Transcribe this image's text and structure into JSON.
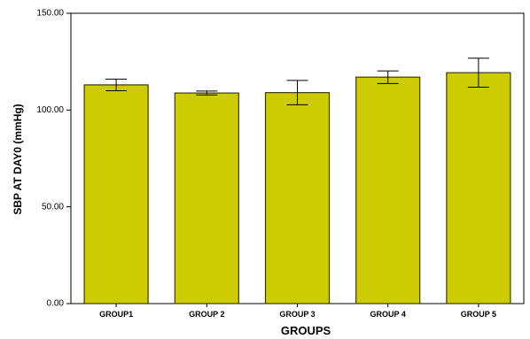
{
  "chart_data": {
    "type": "bar",
    "categories": [
      "GROUP1",
      "GROUP 2",
      "GROUP 3",
      "GROUP 4",
      "GROUP 5"
    ],
    "values": [
      113,
      108.8,
      109,
      117,
      119.3
    ],
    "error_low": [
      110,
      107.8,
      102.7,
      113.7,
      111.8
    ],
    "error_high": [
      116,
      109.8,
      115.3,
      120.2,
      126.8
    ],
    "xlabel": "GROUPS",
    "ylabel": "SBP AT DAY0 (mmHg)",
    "ylim": [
      0,
      150
    ],
    "yticks": [
      0,
      50,
      100,
      150
    ],
    "ytick_labels": [
      "0.00",
      "50.00",
      "100.00",
      "150.00"
    ],
    "grid": false,
    "bar_color": "#cccc00",
    "bar_edge_color": "#3b3b00"
  }
}
